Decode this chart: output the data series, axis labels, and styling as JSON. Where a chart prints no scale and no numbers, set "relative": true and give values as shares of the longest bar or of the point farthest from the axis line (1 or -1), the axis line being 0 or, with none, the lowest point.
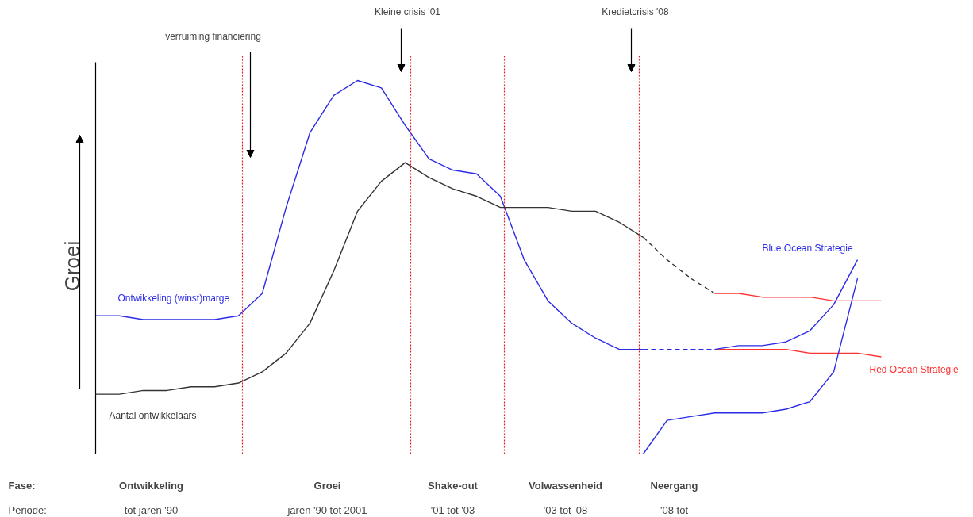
{
  "chart_data": {
    "type": "line",
    "relative": true,
    "ylabel": "Groei",
    "grid": false,
    "marker": "none",
    "categories": [
      null,
      null,
      null,
      null,
      null,
      null,
      null,
      null,
      null,
      null,
      null,
      null,
      null,
      null,
      null,
      null,
      null,
      null,
      null,
      null,
      null,
      null,
      null,
      null,
      null,
      null,
      null,
      null,
      null,
      null,
      null,
      null,
      null,
      null
    ],
    "series": [
      {
        "name": "Ontwikkeling (winst)marge",
        "color": "#2b2be8",
        "line_style": "solid",
        "values": [
          0.37,
          0.37,
          0.36,
          0.36,
          0.36,
          0.36,
          0.37,
          0.43,
          0.66,
          0.86,
          0.96,
          1.0,
          0.98,
          0.88,
          0.79,
          0.76,
          0.75,
          0.69,
          0.52,
          0.41,
          0.35,
          0.31,
          0.28,
          0.28,
          null,
          null,
          null,
          null,
          null,
          null,
          null,
          null,
          null,
          null
        ]
      },
      {
        "name": "Aantal ontwikkelaars",
        "color": "#333333",
        "line_style": "solid",
        "values": [
          0.16,
          0.16,
          0.17,
          0.17,
          0.18,
          0.18,
          0.19,
          0.22,
          0.27,
          0.35,
          0.49,
          0.65,
          0.73,
          0.78,
          0.74,
          0.71,
          0.69,
          0.66,
          0.66,
          0.66,
          0.65,
          0.65,
          0.62,
          0.58,
          null,
          null,
          null,
          null,
          null,
          null,
          null,
          null,
          null,
          null
        ]
      },
      {
        "color": "#333333",
        "line_style": "dashed",
        "values": [
          null,
          null,
          null,
          null,
          null,
          null,
          null,
          null,
          null,
          null,
          null,
          null,
          null,
          null,
          null,
          null,
          null,
          null,
          null,
          null,
          null,
          null,
          null,
          0.58,
          0.52,
          0.47,
          0.43,
          null,
          null,
          null,
          null,
          null,
          null,
          null
        ]
      },
      {
        "color": "#2b2be8",
        "line_style": "dashed",
        "values": [
          null,
          null,
          null,
          null,
          null,
          null,
          null,
          null,
          null,
          null,
          null,
          null,
          null,
          null,
          null,
          null,
          null,
          null,
          null,
          null,
          null,
          null,
          null,
          0.28,
          0.28,
          0.28,
          0.28,
          null,
          null,
          null,
          null,
          null,
          null,
          null
        ]
      },
      {
        "color": "#ff3333",
        "line_style": "solid",
        "values": [
          null,
          null,
          null,
          null,
          null,
          null,
          null,
          null,
          null,
          null,
          null,
          null,
          null,
          null,
          null,
          null,
          null,
          null,
          null,
          null,
          null,
          null,
          null,
          null,
          null,
          null,
          0.43,
          0.43,
          0.42,
          0.42,
          0.42,
          0.41,
          0.41,
          0.41
        ]
      },
      {
        "name": "Red Ocean Strategie",
        "color": "#ff3333",
        "line_style": "solid",
        "values": [
          null,
          null,
          null,
          null,
          null,
          null,
          null,
          null,
          null,
          null,
          null,
          null,
          null,
          null,
          null,
          null,
          null,
          null,
          null,
          null,
          null,
          null,
          null,
          null,
          null,
          null,
          0.28,
          0.28,
          0.28,
          0.28,
          0.27,
          0.27,
          0.27,
          0.26
        ]
      },
      {
        "name": "Blue Ocean Strategie",
        "color": "#2b2be8",
        "line_style": "solid",
        "values": [
          null,
          null,
          null,
          null,
          null,
          null,
          null,
          null,
          null,
          null,
          null,
          null,
          null,
          null,
          null,
          null,
          null,
          null,
          null,
          null,
          null,
          null,
          null,
          null,
          null,
          null,
          0.28,
          0.29,
          0.29,
          0.3,
          0.33,
          0.4,
          0.52,
          null
        ]
      },
      {
        "color": "#2b2be8",
        "line_style": "solid",
        "values": [
          null,
          null,
          null,
          null,
          null,
          null,
          null,
          null,
          null,
          null,
          null,
          null,
          null,
          null,
          null,
          null,
          null,
          null,
          null,
          null,
          null,
          null,
          null,
          0.0,
          0.09,
          0.1,
          0.11,
          0.11,
          0.11,
          0.12,
          0.14,
          0.22,
          0.47,
          null
        ]
      }
    ],
    "annotations": [
      "verruiming financiering",
      "Kleine crisis '01",
      "Kredietcrisis '08",
      "Fase:",
      "Ontwikkeling",
      "Groei",
      "Shake-out",
      "Volwassenheid",
      "Neergang",
      "Periode:",
      "tot jaren '90",
      "jaren '90 tot 2001",
      "'01 tot '03",
      "'03 tot '08",
      "'08 tot"
    ]
  }
}
